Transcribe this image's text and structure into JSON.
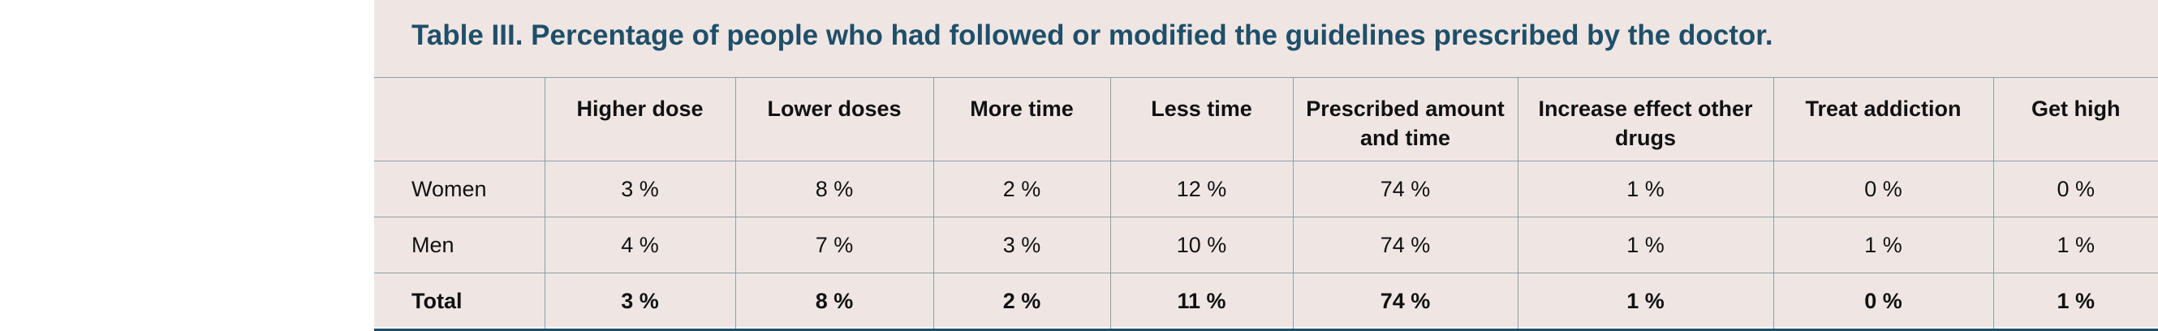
{
  "table": {
    "title": "Table III. Percentage of people who had followed or modified the guidelines prescribed by the doctor.",
    "columns": [
      "Higher dose",
      "Lower doses",
      "More time",
      "Less time",
      "Prescribed amount and time",
      "Increase effect other drugs",
      "Treat addiction",
      "Get high"
    ],
    "rows": [
      {
        "label": "Women",
        "values": [
          "3 %",
          "8 %",
          "2 %",
          "12 %",
          "74 %",
          "1 %",
          "0 %",
          "0 %"
        ]
      },
      {
        "label": "Men",
        "values": [
          "4 %",
          "7 %",
          "3 %",
          "10 %",
          "74 %",
          "1 %",
          "1 %",
          "1 %"
        ]
      },
      {
        "label": "Total",
        "values": [
          "3 %",
          "8 %",
          "2 %",
          "11 %",
          "74 %",
          "1 %",
          "0 %",
          "1 %"
        ]
      }
    ]
  }
}
